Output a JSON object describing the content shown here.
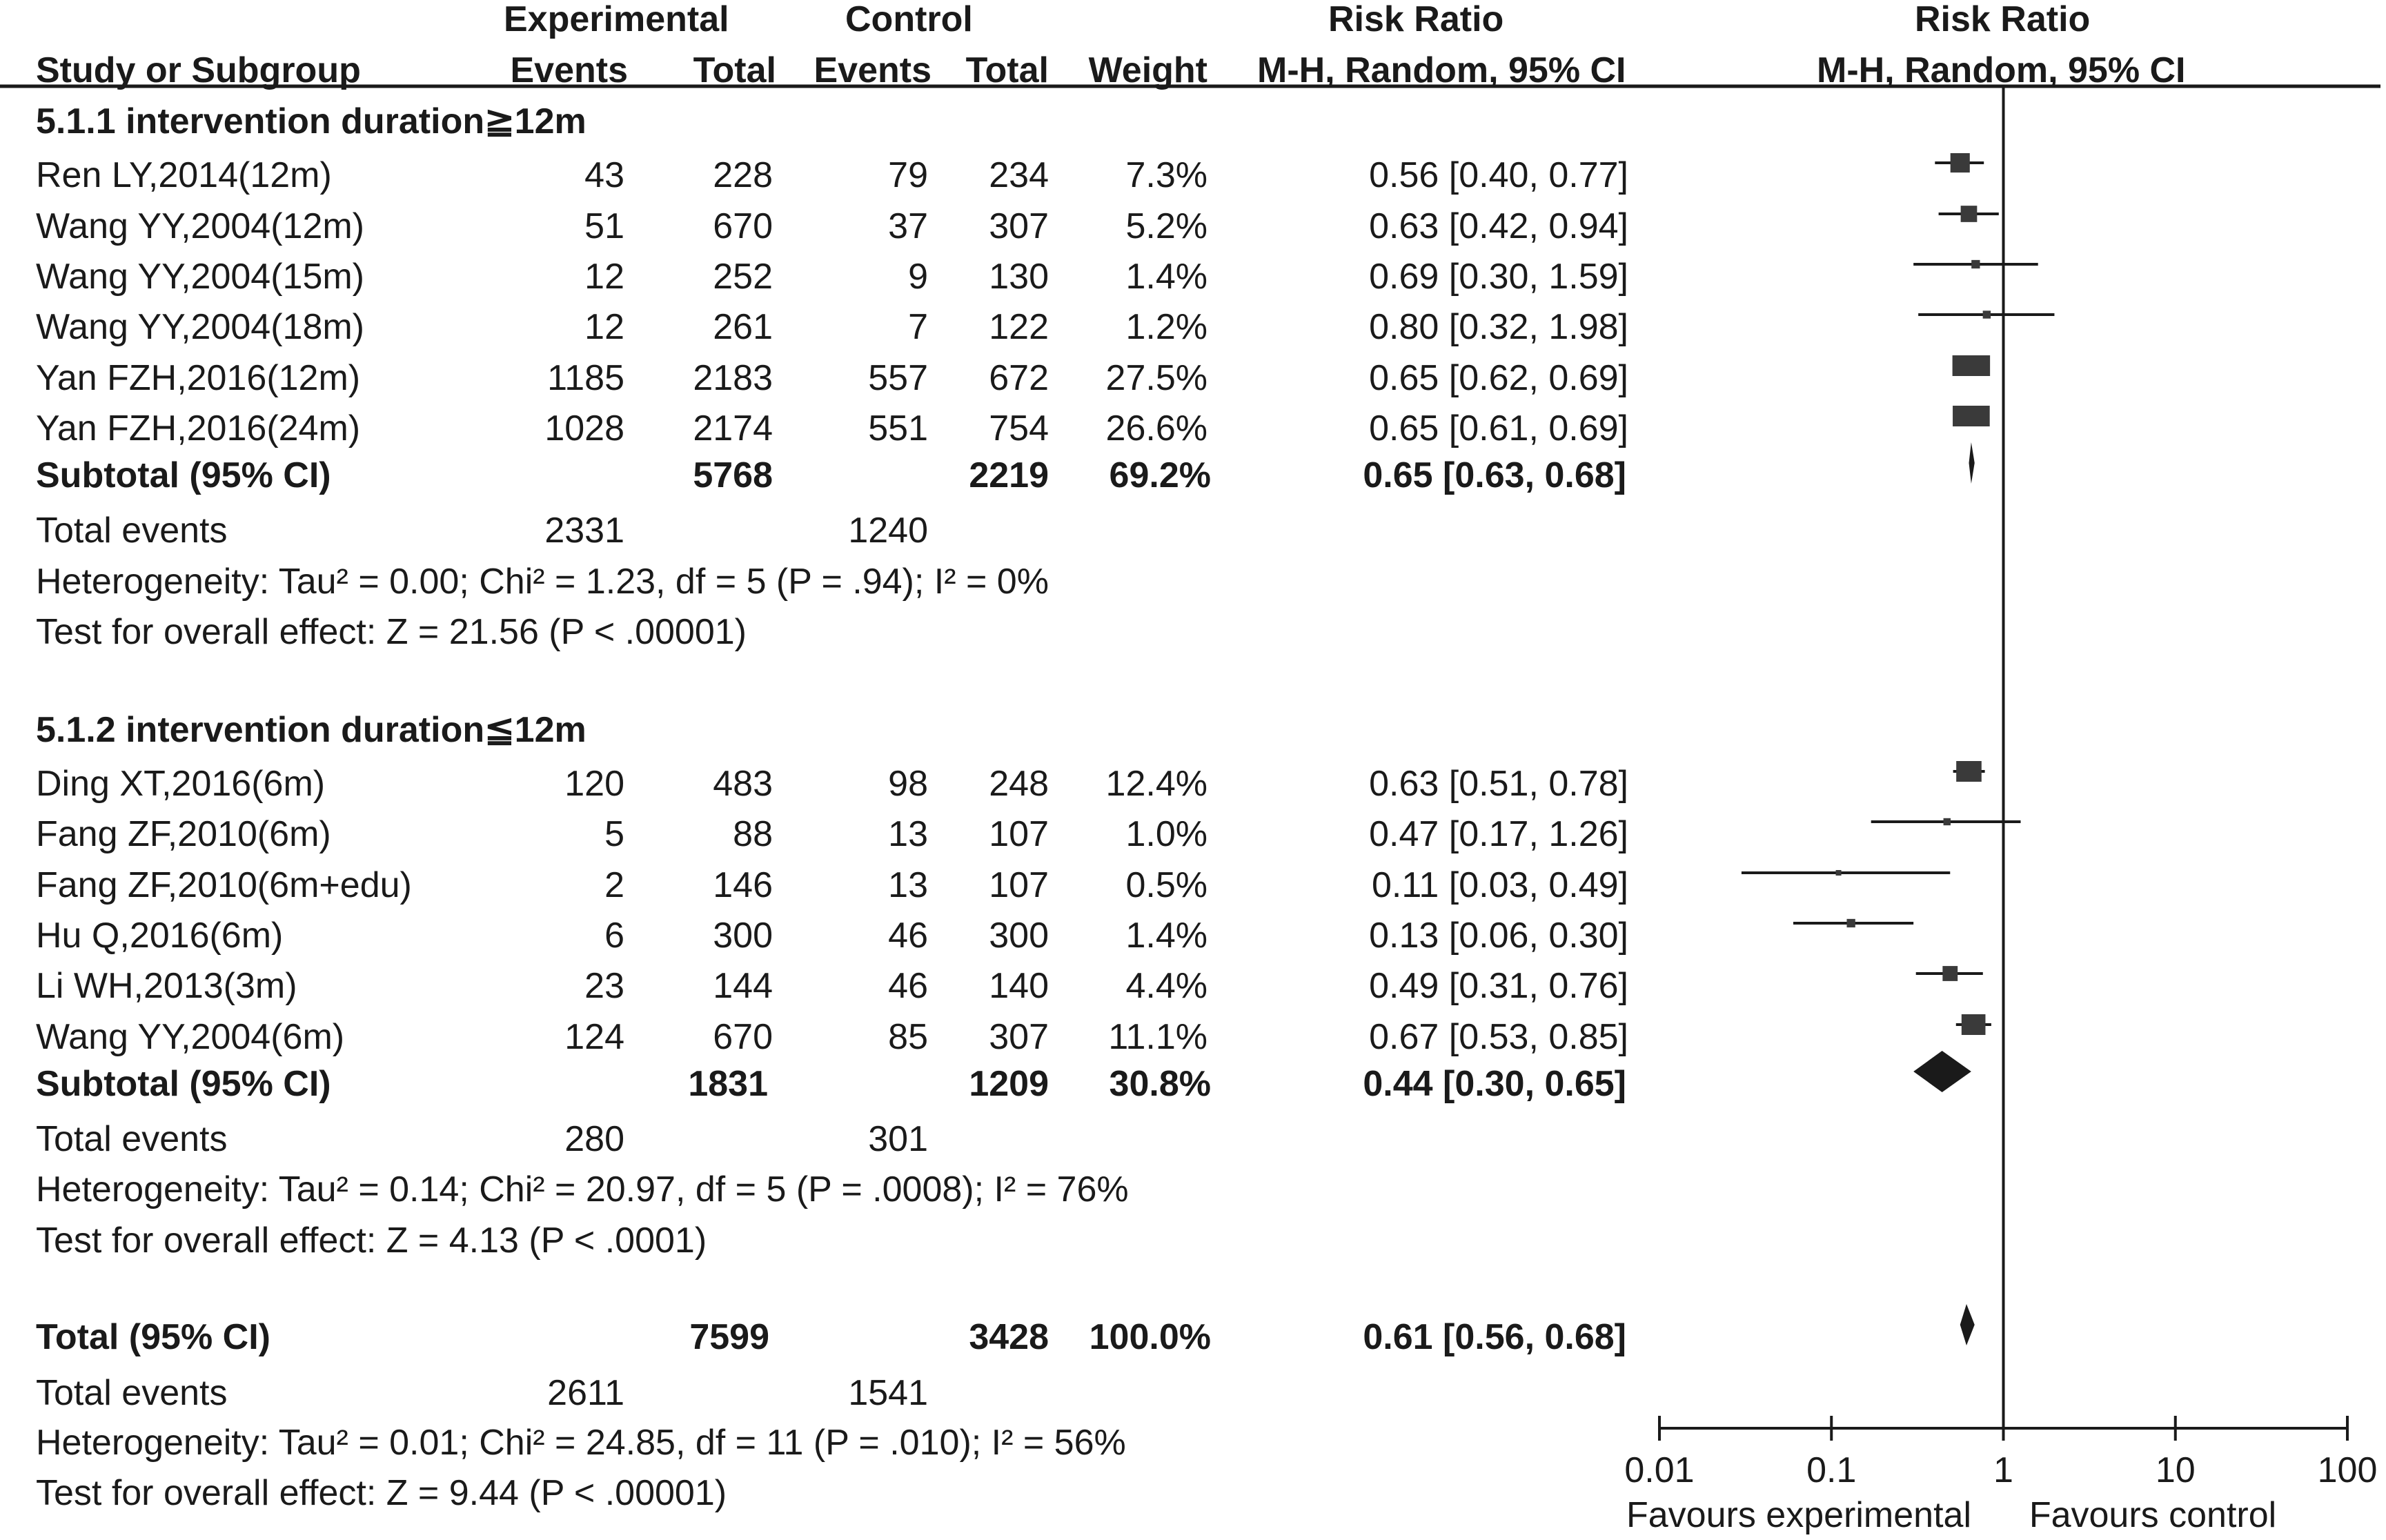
{
  "header": {
    "experimental": "Experimental",
    "control": "Control",
    "risk_ratio": "Risk Ratio",
    "risk_ratio_plot": "Risk Ratio",
    "study": "Study or Subgroup",
    "exp_events": "Events",
    "exp_total": "Total",
    "ctl_events": "Events",
    "ctl_total": "Total",
    "weight": "Weight",
    "method": "M-H, Random, 95% CI",
    "method_plot": "M-H, Random, 95% CI"
  },
  "groups": [
    {
      "title": "5.1.1 intervention duration≧12m",
      "studies": [
        {
          "name": "Ren LY,2014(12m)",
          "ee": "43",
          "et": "228",
          "ce": "79",
          "ct": "234",
          "w": "7.3%",
          "ci": "0.56 [0.40, 0.77]"
        },
        {
          "name": "Wang YY,2004(12m)",
          "ee": "51",
          "et": "670",
          "ce": "37",
          "ct": "307",
          "w": "5.2%",
          "ci": "0.63 [0.42, 0.94]"
        },
        {
          "name": "Wang YY,2004(15m)",
          "ee": "12",
          "et": "252",
          "ce": "9",
          "ct": "130",
          "w": "1.4%",
          "ci": "0.69 [0.30, 1.59]"
        },
        {
          "name": "Wang YY,2004(18m)",
          "ee": "12",
          "et": "261",
          "ce": "7",
          "ct": "122",
          "w": "1.2%",
          "ci": "0.80 [0.32, 1.98]"
        },
        {
          "name": "Yan FZH,2016(12m)",
          "ee": "1185",
          "et": "2183",
          "ce": "557",
          "ct": "672",
          "w": "27.5%",
          "ci": "0.65 [0.62, 0.69]"
        },
        {
          "name": "Yan FZH,2016(24m)",
          "ee": "1028",
          "et": "2174",
          "ce": "551",
          "ct": "754",
          "w": "26.6%",
          "ci": "0.65 [0.61, 0.69]"
        }
      ],
      "subtotal": {
        "label": "Subtotal (95% CI)",
        "et": "5768",
        "ct": "2219",
        "w": "69.2%",
        "ci": "0.65 [0.63, 0.68]"
      },
      "total_events": {
        "label": "Total events",
        "exp": "2331",
        "ctl": "1240"
      },
      "heterogeneity": "Heterogeneity: Tau² = 0.00; Chi² = 1.23, df = 5 (P = .94); I² = 0%",
      "overall": "Test for overall effect: Z = 21.56 (P < .00001)"
    },
    {
      "title": "5.1.2 intervention duration≦12m",
      "studies": [
        {
          "name": "Ding XT,2016(6m)",
          "ee": "120",
          "et": "483",
          "ce": "98",
          "ct": "248",
          "w": "12.4%",
          "ci": "0.63 [0.51, 0.78]"
        },
        {
          "name": "Fang ZF,2010(6m)",
          "ee": "5",
          "et": "88",
          "ce": "13",
          "ct": "107",
          "w": "1.0%",
          "ci": "0.47 [0.17, 1.26]"
        },
        {
          "name": "Fang ZF,2010(6m+edu)",
          "ee": "2",
          "et": "146",
          "ce": "13",
          "ct": "107",
          "w": "0.5%",
          "ci": "0.11 [0.03, 0.49]"
        },
        {
          "name": "Hu Q,2016(6m)",
          "ee": "6",
          "et": "300",
          "ce": "46",
          "ct": "300",
          "w": "1.4%",
          "ci": "0.13 [0.06, 0.30]"
        },
        {
          "name": "Li WH,2013(3m)",
          "ee": "23",
          "et": "144",
          "ce": "46",
          "ct": "140",
          "w": "4.4%",
          "ci": "0.49 [0.31, 0.76]"
        },
        {
          "name": "Wang YY,2004(6m)",
          "ee": "124",
          "et": "670",
          "ce": "85",
          "ct": "307",
          "w": "11.1%",
          "ci": "0.67 [0.53, 0.85]"
        }
      ],
      "subtotal": {
        "label": "Subtotal (95% CI)",
        "et": "1831",
        "ct": "1209",
        "w": "30.8%",
        "ci": "0.44 [0.30, 0.65]"
      },
      "total_events": {
        "label": "Total events",
        "exp": "280",
        "ctl": "301"
      },
      "heterogeneity": "Heterogeneity: Tau² = 0.14; Chi² = 20.97, df = 5 (P = .0008); I² = 76%",
      "overall": "Test for overall effect: Z = 4.13 (P < .0001)"
    }
  ],
  "total": {
    "label": "Total (95% CI)",
    "et": "7599",
    "ct": "3428",
    "w": "100.0%",
    "ci": "0.61 [0.56, 0.68]"
  },
  "total_events": {
    "label": "Total events",
    "exp": "2611",
    "ctl": "1541"
  },
  "total_heterogeneity": "Heterogeneity: Tau² = 0.01; Chi² = 24.85, df = 11 (P = .010); I² = 56%",
  "total_overall": "Test for overall effect: Z = 9.44 (P < .00001)",
  "chart_data": {
    "type": "forest",
    "x_scale": "log",
    "x_ticks": [
      "0.01",
      "0.1",
      "1",
      "10",
      "100"
    ],
    "x_tick_values": [
      0.01,
      0.1,
      1,
      10,
      100
    ],
    "favours_left": "Favours experimental",
    "favours_right": "Favours control",
    "study_estimates": [
      {
        "rr": 0.56,
        "lo": 0.4,
        "hi": 0.77,
        "w": 7.3
      },
      {
        "rr": 0.63,
        "lo": 0.42,
        "hi": 0.94,
        "w": 5.2
      },
      {
        "rr": 0.69,
        "lo": 0.3,
        "hi": 1.59,
        "w": 1.4
      },
      {
        "rr": 0.8,
        "lo": 0.32,
        "hi": 1.98,
        "w": 1.2
      },
      {
        "rr": 0.65,
        "lo": 0.62,
        "hi": 0.69,
        "w": 27.5
      },
      {
        "rr": 0.65,
        "lo": 0.61,
        "hi": 0.69,
        "w": 26.6
      },
      {
        "rr": 0.63,
        "lo": 0.51,
        "hi": 0.78,
        "w": 12.4
      },
      {
        "rr": 0.47,
        "lo": 0.17,
        "hi": 1.26,
        "w": 1.0
      },
      {
        "rr": 0.11,
        "lo": 0.03,
        "hi": 0.49,
        "w": 0.5
      },
      {
        "rr": 0.13,
        "lo": 0.06,
        "hi": 0.3,
        "w": 1.4
      },
      {
        "rr": 0.49,
        "lo": 0.31,
        "hi": 0.76,
        "w": 4.4
      },
      {
        "rr": 0.67,
        "lo": 0.53,
        "hi": 0.85,
        "w": 11.1
      }
    ],
    "summary_estimates": [
      {
        "rr": 0.65,
        "lo": 0.63,
        "hi": 0.68
      },
      {
        "rr": 0.44,
        "lo": 0.3,
        "hi": 0.65
      },
      {
        "rr": 0.61,
        "lo": 0.56,
        "hi": 0.68
      }
    ]
  }
}
